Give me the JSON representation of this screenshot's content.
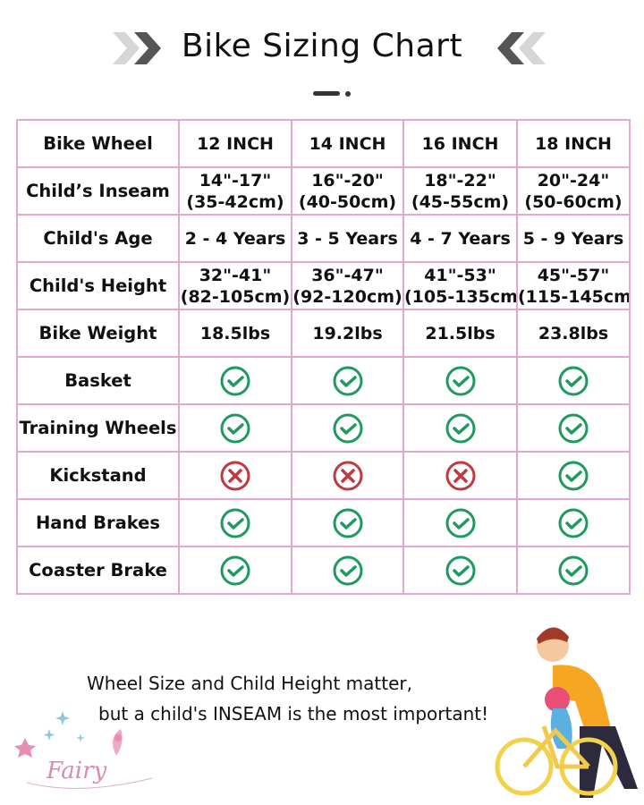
{
  "header": {
    "title": "Bike Sizing Chart"
  },
  "table": {
    "columns": [
      "Bike Wheel",
      "12 INCH",
      "14 INCH",
      "16 INCH",
      "18 INCH"
    ],
    "text_rows": [
      {
        "label": "Child’s Inseam",
        "values": [
          [
            "14\"-17\"",
            "(35-42cm)"
          ],
          [
            "16\"-20\"",
            "(40-50cm)"
          ],
          [
            "18\"-22\"",
            "(45-55cm)"
          ],
          [
            "20\"-24\"",
            "(50-60cm)"
          ]
        ]
      },
      {
        "label": "Child's Age",
        "values": [
          [
            "2 - 4 Years"
          ],
          [
            "3 - 5 Years"
          ],
          [
            "4 - 7 Years"
          ],
          [
            "5 - 9 Years"
          ]
        ]
      },
      {
        "label": "Child's Height",
        "values": [
          [
            "32\"-41\"",
            "(82-105cm)"
          ],
          [
            "36\"-47\"",
            "(92-120cm)"
          ],
          [
            "41\"-53\"",
            "(105-135cm"
          ],
          [
            "45\"-57\"",
            "(115-145cm"
          ]
        ]
      },
      {
        "label": "Bike Weight",
        "values": [
          [
            "18.5lbs"
          ],
          [
            "19.2lbs"
          ],
          [
            "21.5lbs"
          ],
          [
            "23.8lbs"
          ]
        ]
      }
    ],
    "feature_rows": [
      {
        "label": "Basket",
        "values": [
          true,
          true,
          true,
          true
        ]
      },
      {
        "label": "Training Wheels",
        "values": [
          true,
          true,
          true,
          true
        ]
      },
      {
        "label": "Kickstand",
        "values": [
          false,
          false,
          false,
          true
        ]
      },
      {
        "label": "Hand Brakes",
        "values": [
          true,
          true,
          true,
          true
        ]
      },
      {
        "label": "Coaster Brake",
        "values": [
          true,
          true,
          true,
          true
        ]
      }
    ]
  },
  "note": {
    "line1": "Wheel Size and Child Height matter,",
    "line2": "but a child's INSEAM is the most important!"
  },
  "logo": {
    "text": "Fairy"
  },
  "icons": {
    "yes": "check-circle-icon",
    "no": "x-circle-icon"
  },
  "colors": {
    "border": "#e2a9cf",
    "check": "#1f9a5f",
    "cross": "#c0393f",
    "chevron_dark": "#555555",
    "chevron_light": "#d6d6d6"
  }
}
